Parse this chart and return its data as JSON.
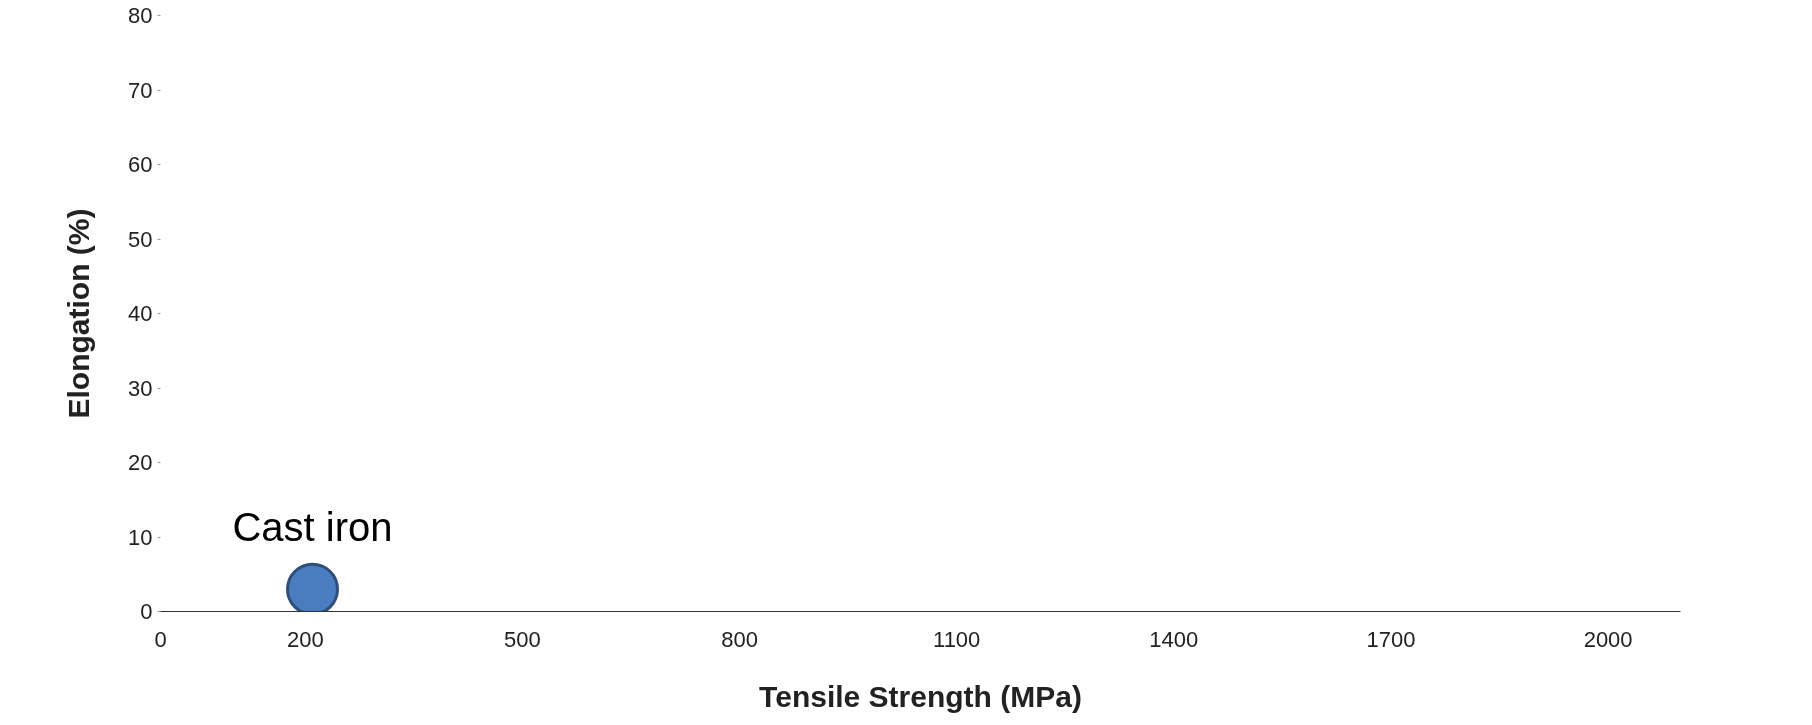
{
  "chart_data": {
    "type": "scatter",
    "xlabel": "Tensile Strength (MPa)",
    "ylabel": "Elongation (%)",
    "x": [
      210
    ],
    "values": [
      3
    ],
    "color": "#4a7cc0",
    "marker": "circle",
    "annotations": [
      {
        "text": "Cast iron",
        "x": 210,
        "y": 3
      }
    ],
    "xlim": [
      0,
      2100
    ],
    "xticks": [
      0,
      200,
      500,
      800,
      1100,
      1400,
      1700,
      2000
    ],
    "ylim": [
      0,
      80
    ],
    "yticks": [
      0,
      10,
      20,
      30,
      40,
      50,
      60,
      70,
      80
    ],
    "grid": false
  }
}
